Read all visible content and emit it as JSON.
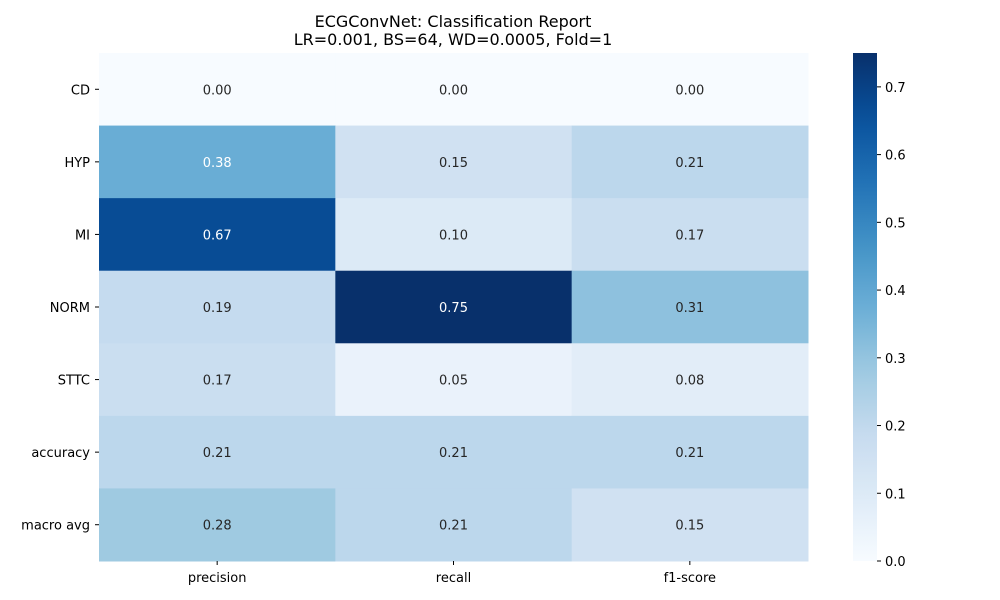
{
  "chart_data": {
    "type": "heatmap",
    "title": "ECGConvNet: Classification Report\nLR=0.001, BS=64, WD=0.0005, Fold=1",
    "title_lines": [
      "ECGConvNet: Classification Report",
      "LR=0.001, BS=64, WD=0.0005, Fold=1"
    ],
    "xlabel": "",
    "ylabel": "",
    "x_categories": [
      "precision",
      "recall",
      "f1-score"
    ],
    "y_categories": [
      "CD",
      "HYP",
      "MI",
      "NORM",
      "STTC",
      "accuracy",
      "macro avg"
    ],
    "values": [
      [
        0.0,
        0.0,
        0.0
      ],
      [
        0.38,
        0.15,
        0.21
      ],
      [
        0.67,
        0.1,
        0.17
      ],
      [
        0.19,
        0.75,
        0.31
      ],
      [
        0.17,
        0.05,
        0.08
      ],
      [
        0.21,
        0.21,
        0.21
      ],
      [
        0.28,
        0.21,
        0.15
      ]
    ],
    "value_format": "0.00",
    "colormap": "Blues",
    "colorbar": {
      "range": [
        0.0,
        0.75
      ],
      "ticks": [
        0.0,
        0.1,
        0.2,
        0.3,
        0.4,
        0.5,
        0.6,
        0.7
      ],
      "tick_labels": [
        "0.0",
        "0.1",
        "0.2",
        "0.3",
        "0.4",
        "0.5",
        "0.6",
        "0.7"
      ]
    },
    "grid": false,
    "colors": {
      "low": "#f7fbff",
      "high": "#08306b",
      "text_dark": "#262626",
      "text_light": "#ffffff"
    }
  }
}
